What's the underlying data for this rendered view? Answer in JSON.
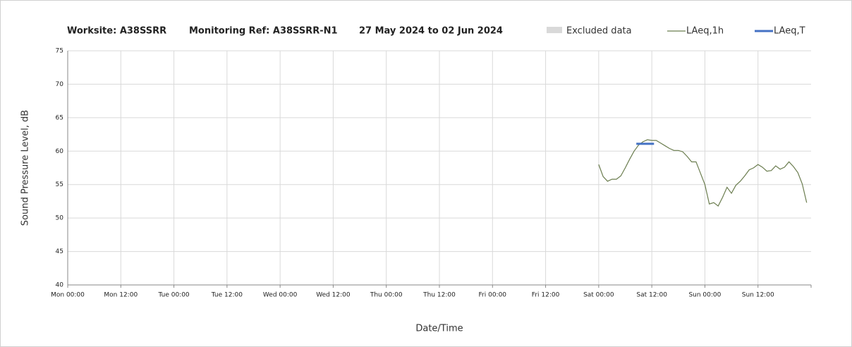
{
  "chart_data": {
    "type": "line",
    "title": [
      "Worksite: A38SSRR",
      "Monitoring Ref: A38SSRR-N1",
      "27 May 2024 to 02 Jun 2024"
    ],
    "x_label": "Date/Time",
    "y_label": "Sound Pressure Level, dB",
    "legend_excluded": {
      "name": "Excluded data",
      "color": "#d9d9d9"
    },
    "series": [
      {
        "name": "LAeq,1h",
        "color": "#6b7d4f",
        "x": [
          120,
          121,
          122,
          123,
          124,
          125,
          126,
          127,
          128,
          129,
          130,
          131,
          132,
          133,
          134,
          135,
          136,
          137,
          138,
          139,
          140,
          141,
          142,
          143,
          144,
          145,
          146,
          147,
          148,
          149,
          150,
          151,
          152,
          153,
          154,
          155,
          156,
          157,
          158,
          159,
          160,
          161,
          162,
          163,
          164,
          165,
          166,
          167
        ],
        "values": [
          58.0,
          56.2,
          55.5,
          55.8,
          55.8,
          56.3,
          57.5,
          58.8,
          60.0,
          60.9,
          61.4,
          61.7,
          61.6,
          61.6,
          61.2,
          60.8,
          60.4,
          60.1,
          60.1,
          59.9,
          59.2,
          58.4,
          58.4,
          56.7,
          55.0,
          52.1,
          52.3,
          51.8,
          53.1,
          54.6,
          53.7,
          54.9,
          55.5,
          56.3,
          57.2,
          57.5,
          58.0,
          57.6,
          57.0,
          57.1,
          57.8,
          57.3,
          57.6,
          58.4,
          57.7,
          56.8,
          55.1,
          52.3
        ]
      },
      {
        "name": "LAeq,T",
        "color": "#4472c4",
        "x": [
          128.5,
          132.5
        ],
        "values": [
          61.1,
          61.1
        ]
      }
    ],
    "xlim": [
      0,
      168
    ],
    "xticks": [
      {
        "value": 0,
        "label": "Mon 00:00"
      },
      {
        "value": 12,
        "label": "Mon 12:00"
      },
      {
        "value": 24,
        "label": "Tue 00:00"
      },
      {
        "value": 36,
        "label": "Tue 12:00"
      },
      {
        "value": 48,
        "label": "Wed 00:00"
      },
      {
        "value": 60,
        "label": "Wed 12:00"
      },
      {
        "value": 72,
        "label": "Thu 00:00"
      },
      {
        "value": 84,
        "label": "Thu 12:00"
      },
      {
        "value": 96,
        "label": "Fri 00:00"
      },
      {
        "value": 108,
        "label": "Fri 12:00"
      },
      {
        "value": 120,
        "label": "Sat 00:00"
      },
      {
        "value": 132,
        "label": "Sat 12:00"
      },
      {
        "value": 144,
        "label": "Sun 00:00"
      },
      {
        "value": 156,
        "label": "Sun 12:00"
      }
    ],
    "ylim": [
      40,
      75
    ],
    "yticks": [
      40,
      45,
      50,
      55,
      60,
      65,
      70,
      75
    ],
    "grid": true
  }
}
